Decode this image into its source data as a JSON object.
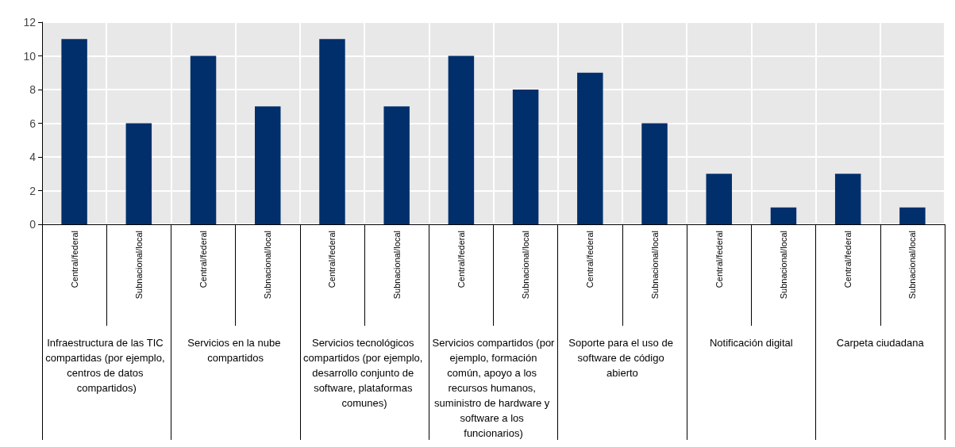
{
  "chart_data": {
    "type": "bar",
    "categories": [
      "Central/federal",
      "Subnacional/local",
      "Central/federal",
      "Subnacional/local",
      "Central/federal",
      "Subnacional/local",
      "Central/federal",
      "Subnacional/local",
      "Central/federal",
      "Subnacional/local",
      "Central/federal",
      "Subnacional/local",
      "Central/federal",
      "Subnacional/local"
    ],
    "values": [
      11,
      6,
      10,
      7,
      11,
      7,
      10,
      8,
      9,
      6,
      3,
      1,
      3,
      1
    ],
    "color": "#002f6c",
    "ylim": [
      0,
      12
    ],
    "yticks": [
      0,
      2,
      4,
      6,
      8,
      10,
      12
    ],
    "grid": true,
    "annotations": [
      "Infraestructura de las TIC compartidas (por ejemplo, centros de datos compartidos)",
      "Servicios en la nube compartidos",
      "Servicios tecnológicos compartidos (por ejemplo, desarrollo conjunto de software, plataformas comunes)",
      "Servicios compartidos (por ejemplo, formación común, apoyo a los recursos humanos, suministro de hardware y software a los funcionarios)",
      "Soporte para el uso de software de código abierto",
      "Notificación digital",
      "Carpeta ciudadana"
    ]
  }
}
